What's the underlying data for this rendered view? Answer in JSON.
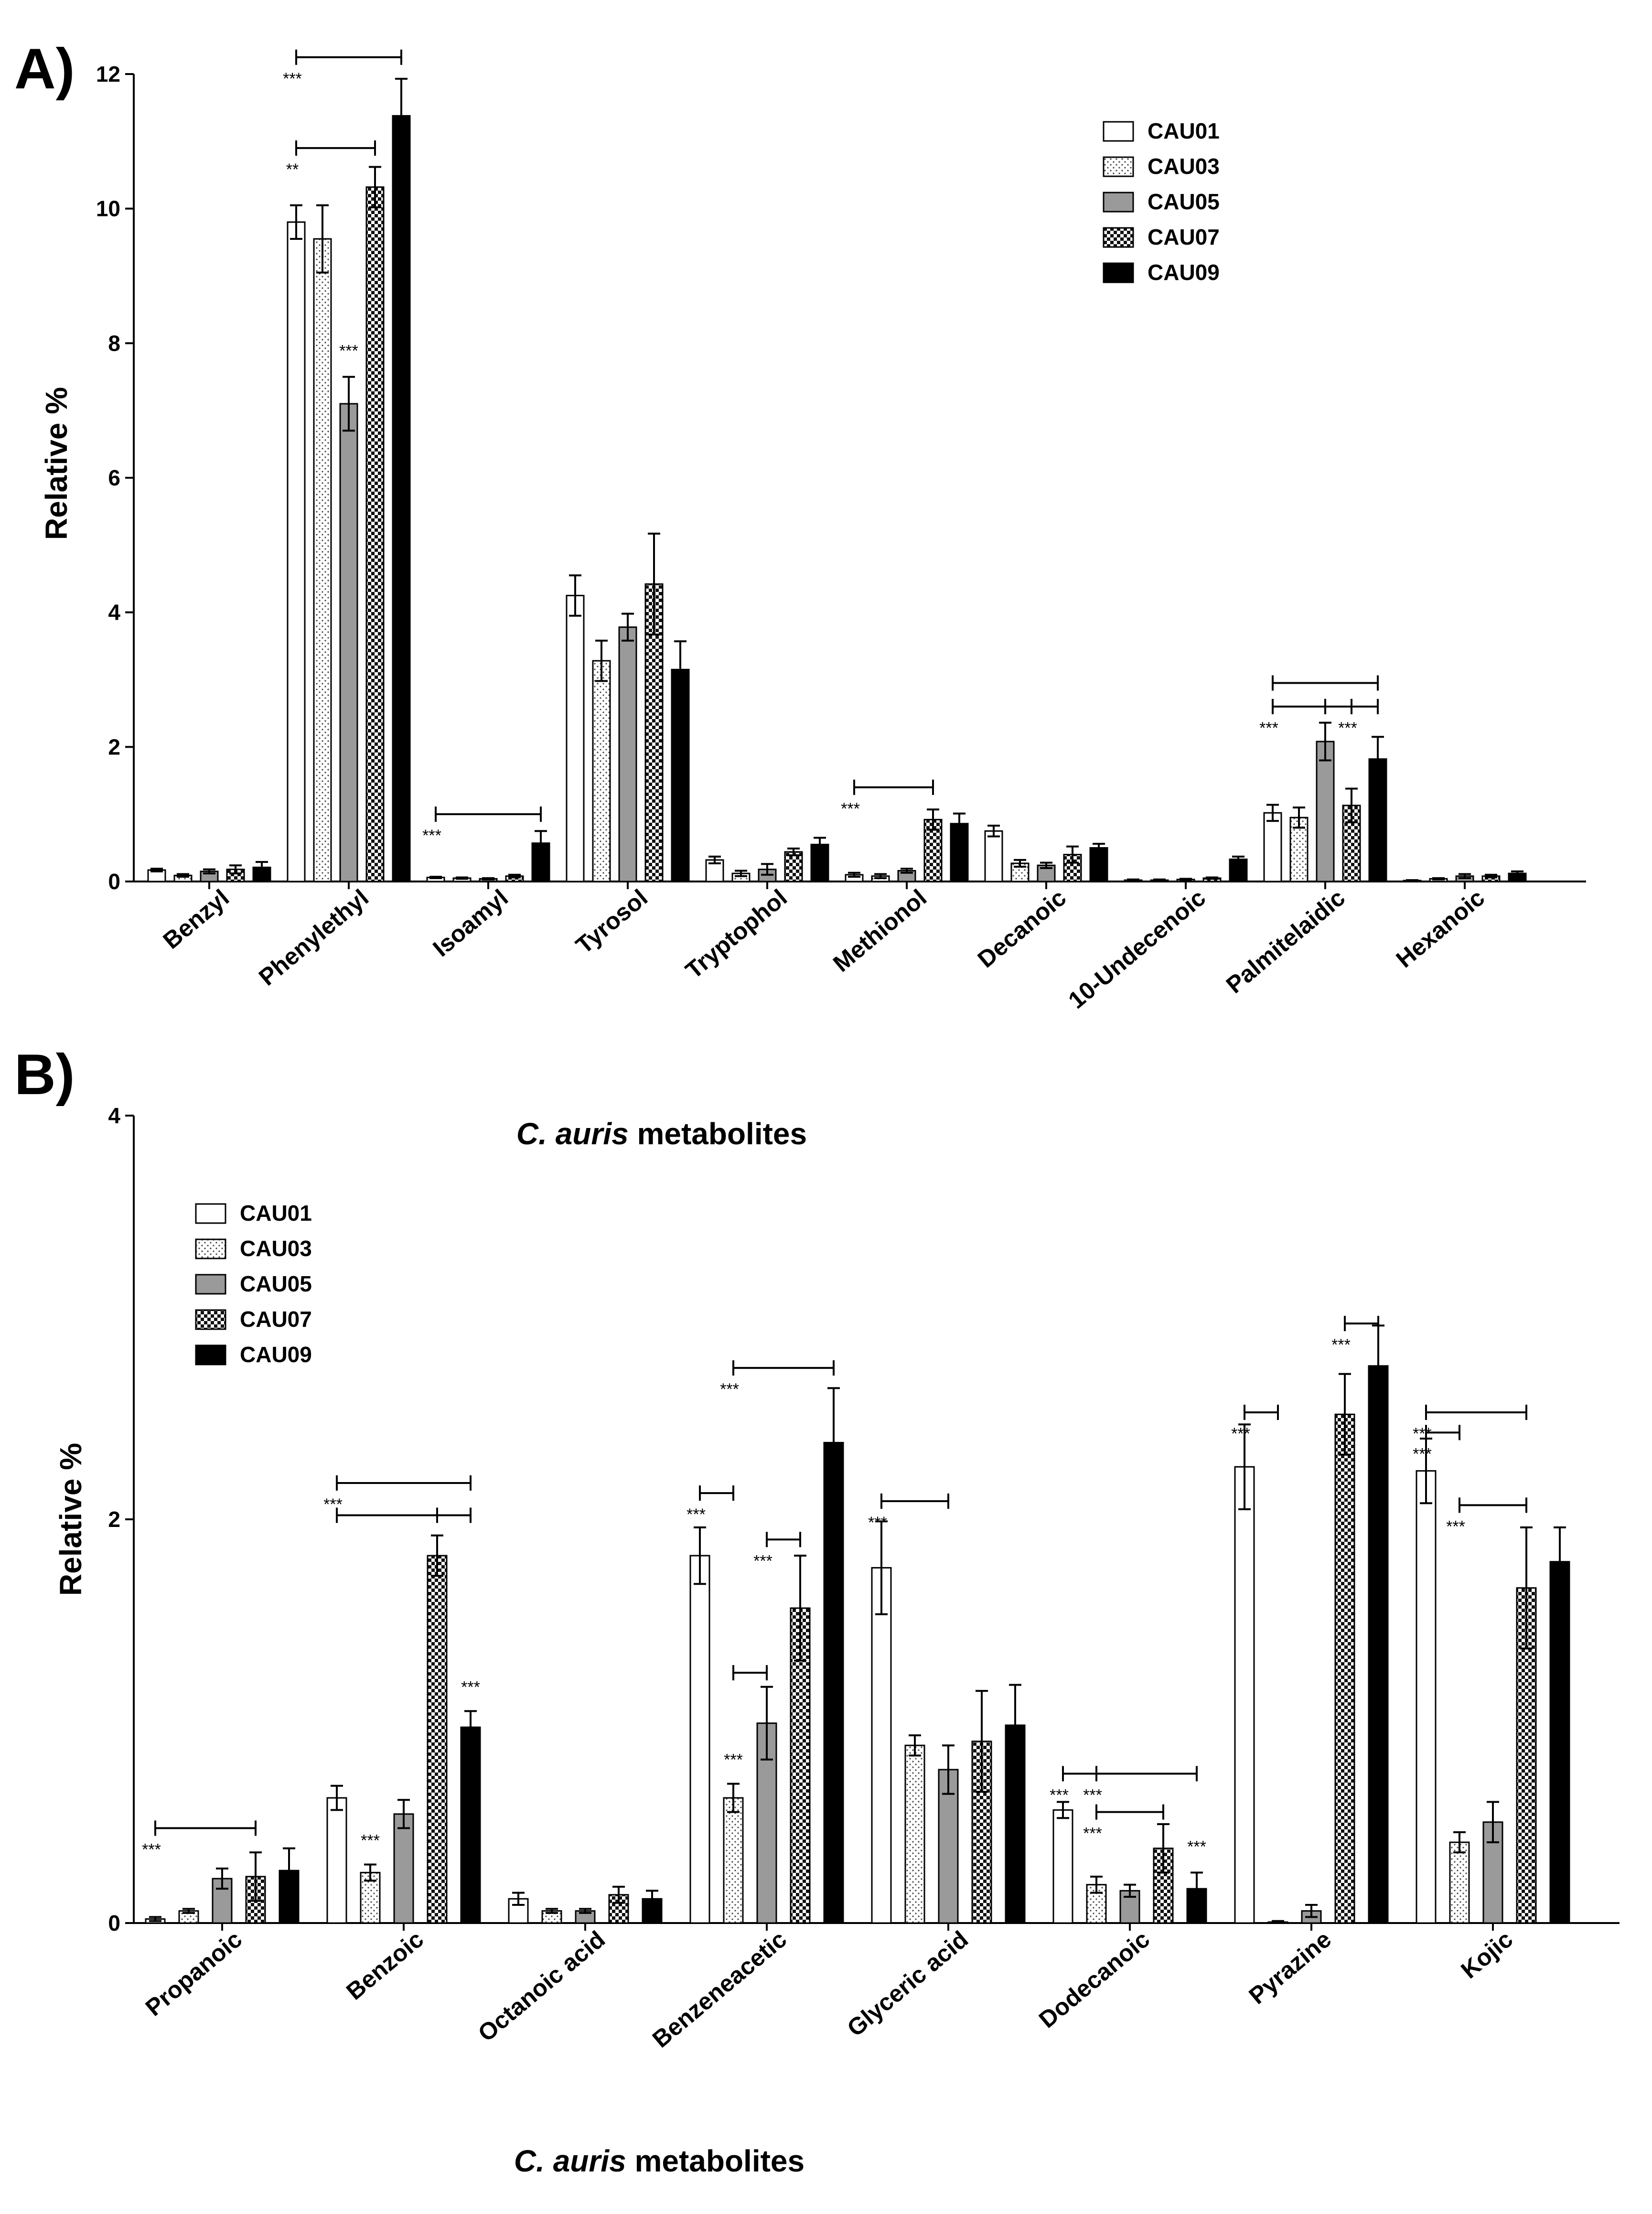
{
  "figure": {
    "panel_labels": [
      "A)",
      "B)"
    ]
  },
  "chart_data": [
    {
      "type": "bar",
      "panel": "A)",
      "title": "",
      "xlabel_italic": "C. auris",
      "xlabel_rest": " metabolites",
      "ylabel": "Relative %",
      "ylim": [
        0,
        12
      ],
      "yticks": [
        0,
        2,
        4,
        6,
        8,
        10,
        12
      ],
      "grid": false,
      "legend_position": "top-right",
      "categories": [
        "Benzyl",
        "Phenylethyl",
        "Isoamyl",
        "Tyrosol",
        "Tryptophol",
        "Methionol",
        "Decanoic",
        "10-Undecenoic",
        "Palmitelaidic",
        "Hexanoic"
      ],
      "series": [
        {
          "name": "CAU01",
          "pattern": "white",
          "values": [
            0.17,
            9.8,
            0.06,
            4.25,
            0.32,
            0.1,
            0.75,
            0.02,
            1.02,
            0.01
          ],
          "errors": [
            0.02,
            0.25,
            0.01,
            0.3,
            0.05,
            0.03,
            0.08,
            0.01,
            0.12,
            0.01
          ]
        },
        {
          "name": "CAU03",
          "pattern": "dotted",
          "values": [
            0.09,
            9.55,
            0.05,
            3.28,
            0.12,
            0.08,
            0.27,
            0.02,
            0.95,
            0.04
          ],
          "errors": [
            0.02,
            0.5,
            0.01,
            0.3,
            0.04,
            0.03,
            0.05,
            0.01,
            0.15,
            0.01
          ]
        },
        {
          "name": "CAU05",
          "pattern": "gray",
          "values": [
            0.15,
            7.1,
            0.04,
            3.78,
            0.18,
            0.16,
            0.24,
            0.03,
            2.08,
            0.08
          ],
          "errors": [
            0.03,
            0.4,
            0.01,
            0.2,
            0.08,
            0.03,
            0.04,
            0.01,
            0.28,
            0.03
          ]
        },
        {
          "name": "CAU07",
          "pattern": "checker",
          "values": [
            0.18,
            10.32,
            0.08,
            4.42,
            0.44,
            0.92,
            0.4,
            0.05,
            1.13,
            0.08
          ],
          "errors": [
            0.06,
            0.3,
            0.02,
            0.75,
            0.05,
            0.15,
            0.12,
            0.01,
            0.25,
            0.02
          ]
        },
        {
          "name": "CAU09",
          "pattern": "black",
          "values": [
            0.21,
            11.38,
            0.57,
            3.15,
            0.55,
            0.86,
            0.5,
            0.33,
            1.82,
            0.12
          ],
          "errors": [
            0.08,
            0.55,
            0.18,
            0.42,
            0.1,
            0.15,
            0.06,
            0.04,
            0.33,
            0.03
          ]
        }
      ],
      "significance": [
        {
          "category": 1,
          "from_series": 0,
          "to_series": 4,
          "level": 12.25,
          "label": "***"
        },
        {
          "category": 1,
          "from_series": 0,
          "to_series": 3,
          "level": 10.9,
          "label": "**"
        },
        {
          "category": 1,
          "from_series": 2,
          "to_series": null,
          "level": 7.65,
          "label": "***"
        },
        {
          "category": 2,
          "from_series": 0,
          "to_series": 4,
          "level": 1.0,
          "label": "***"
        },
        {
          "category": 5,
          "from_series": 0,
          "to_series": 3,
          "level": 1.4,
          "label": "***"
        },
        {
          "category": 8,
          "from_series": 0,
          "to_series": 4,
          "level": 2.95,
          "label": ""
        },
        {
          "category": 8,
          "from_series": 0,
          "to_series": 2,
          "level": 2.6,
          "label": "***"
        },
        {
          "category": 8,
          "from_series": 2,
          "to_series": 3,
          "level": 2.6,
          "label": ""
        },
        {
          "category": 8,
          "from_series": 3,
          "to_series": 4,
          "level": 2.6,
          "label": "***"
        }
      ]
    },
    {
      "type": "bar",
      "panel": "B)",
      "title": "",
      "xlabel_italic": "C. auris",
      "xlabel_rest": " metabolites",
      "ylabel": "Relative %",
      "ylim": [
        0,
        4
      ],
      "yticks": [
        0,
        2,
        4
      ],
      "grid": false,
      "legend_position": "top-left",
      "categories": [
        "Propanoic",
        "Benzoic",
        "Octanoic acid",
        "Benzeneacetic",
        "Glyceric acid",
        "Dodecanoic",
        "Pyrazine",
        "Kojic"
      ],
      "series": [
        {
          "name": "CAU01",
          "pattern": "white",
          "values": [
            0.02,
            0.62,
            0.12,
            1.82,
            1.76,
            0.56,
            2.26,
            2.24
          ],
          "errors": [
            0.01,
            0.06,
            0.03,
            0.14,
            0.23,
            0.04,
            0.21,
            0.16
          ]
        },
        {
          "name": "CAU03",
          "pattern": "dotted",
          "values": [
            0.06,
            0.25,
            0.06,
            0.62,
            0.88,
            0.19,
            0.0,
            0.4
          ],
          "errors": [
            0.01,
            0.04,
            0.01,
            0.07,
            0.05,
            0.04,
            0.01,
            0.05
          ]
        },
        {
          "name": "CAU05",
          "pattern": "gray",
          "values": [
            0.22,
            0.54,
            0.06,
            0.99,
            0.76,
            0.16,
            0.06,
            0.5
          ],
          "errors": [
            0.05,
            0.07,
            0.01,
            0.18,
            0.12,
            0.03,
            0.03,
            0.1
          ]
        },
        {
          "name": "CAU07",
          "pattern": "checker",
          "values": [
            0.23,
            1.82,
            0.14,
            1.56,
            0.9,
            0.37,
            2.52,
            1.66
          ],
          "errors": [
            0.12,
            0.1,
            0.04,
            0.26,
            0.25,
            0.12,
            0.2,
            0.3
          ]
        },
        {
          "name": "CAU09",
          "pattern": "black",
          "values": [
            0.26,
            0.97,
            0.12,
            2.38,
            0.98,
            0.17,
            2.76,
            1.79
          ],
          "errors": [
            0.11,
            0.08,
            0.04,
            0.27,
            0.2,
            0.08,
            0.2,
            0.17
          ]
        }
      ],
      "significance": [
        {
          "category": 0,
          "from_series": 0,
          "to_series": 3,
          "level": 0.47,
          "label": "***"
        },
        {
          "category": 1,
          "from_series": 0,
          "to_series": 4,
          "level": 2.18,
          "label": "***"
        },
        {
          "category": 1,
          "from_series": 0,
          "to_series": 3,
          "level": 2.02,
          "label": ""
        },
        {
          "category": 1,
          "from_series": 3,
          "to_series": 4,
          "level": 2.02,
          "label": ""
        },
        {
          "category": 1,
          "from_series": 1,
          "to_series": null,
          "level": 0.33,
          "label": "***"
        },
        {
          "category": 1,
          "from_series": 4,
          "to_series": null,
          "level": 1.09,
          "label": "***"
        },
        {
          "category": 3,
          "from_series": 1,
          "to_series": 4,
          "level": 2.75,
          "label": "***"
        },
        {
          "category": 3,
          "from_series": 0,
          "to_series": 1,
          "level": 2.13,
          "label": "***"
        },
        {
          "category": 3,
          "from_series": 2,
          "to_series": 3,
          "level": 1.9,
          "label": "***"
        },
        {
          "category": 3,
          "from_series": 1,
          "to_series": 2,
          "level": 1.24,
          "label": ""
        },
        {
          "category": 3,
          "from_series": 1,
          "to_series": null,
          "level": 0.73,
          "label": "***"
        },
        {
          "category": 4,
          "from_series": 0,
          "to_series": 2,
          "level": 2.09,
          "label": "***"
        },
        {
          "category": 5,
          "from_series": 0,
          "to_series": 1,
          "level": 0.74,
          "label": "***"
        },
        {
          "category": 5,
          "from_series": 1,
          "to_series": 4,
          "level": 0.74,
          "label": "***"
        },
        {
          "category": 5,
          "from_series": 1,
          "to_series": 3,
          "level": 0.55,
          "label": "***"
        },
        {
          "category": 5,
          "from_series": 4,
          "to_series": null,
          "level": 0.3,
          "label": "***"
        },
        {
          "category": 6,
          "from_series": 0,
          "to_series": 1,
          "level": 2.53,
          "label": "***"
        },
        {
          "category": 6,
          "from_series": 3,
          "to_series": 4,
          "level": 2.97,
          "label": "***"
        },
        {
          "category": 7,
          "from_series": 0,
          "to_series": 3,
          "level": 2.53,
          "label": "***"
        },
        {
          "category": 7,
          "from_series": 0,
          "to_series": 1,
          "level": 2.43,
          "label": "***"
        },
        {
          "category": 7,
          "from_series": 1,
          "to_series": 3,
          "level": 2.07,
          "label": "***"
        }
      ]
    }
  ]
}
